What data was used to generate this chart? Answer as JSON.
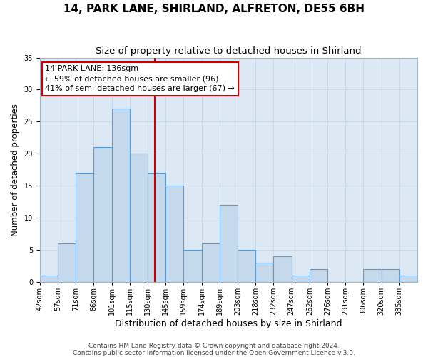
{
  "title": "14, PARK LANE, SHIRLAND, ALFRETON, DE55 6BH",
  "subtitle": "Size of property relative to detached houses in Shirland",
  "xlabel": "Distribution of detached houses by size in Shirland",
  "ylabel": "Number of detached properties",
  "bin_labels": [
    "42sqm",
    "57sqm",
    "71sqm",
    "86sqm",
    "101sqm",
    "115sqm",
    "130sqm",
    "145sqm",
    "159sqm",
    "174sqm",
    "189sqm",
    "203sqm",
    "218sqm",
    "232sqm",
    "247sqm",
    "262sqm",
    "276sqm",
    "291sqm",
    "306sqm",
    "320sqm",
    "335sqm"
  ],
  "bar_heights": [
    1,
    6,
    17,
    21,
    27,
    20,
    17,
    15,
    5,
    6,
    12,
    5,
    3,
    4,
    1,
    2,
    0,
    0,
    2,
    2,
    1
  ],
  "bar_facecolor": "#c5d9ed",
  "bar_edgecolor": "#5b9bd5",
  "bar_linewidth": 0.8,
  "grid_color": "#c8d8e8",
  "axisbg_color": "#dce9f5",
  "vline_after_bar": 6,
  "vline_color": "#cc0000",
  "vline_linewidth": 1.5,
  "annotation_text": "14 PARK LANE: 136sqm\n← 59% of detached houses are smaller (96)\n41% of semi-detached houses are larger (67) →",
  "annotation_box_edgecolor": "#cc0000",
  "annotation_box_facecolor": "#ffffff",
  "ylim": [
    0,
    35
  ],
  "yticks": [
    0,
    5,
    10,
    15,
    20,
    25,
    30,
    35
  ],
  "footer_line1": "Contains HM Land Registry data © Crown copyright and database right 2024.",
  "footer_line2": "Contains public sector information licensed under the Open Government Licence v.3.0.",
  "title_fontsize": 11,
  "subtitle_fontsize": 9.5,
  "xlabel_fontsize": 9,
  "ylabel_fontsize": 8.5,
  "tick_fontsize": 7,
  "annot_fontsize": 8,
  "footer_fontsize": 6.5
}
